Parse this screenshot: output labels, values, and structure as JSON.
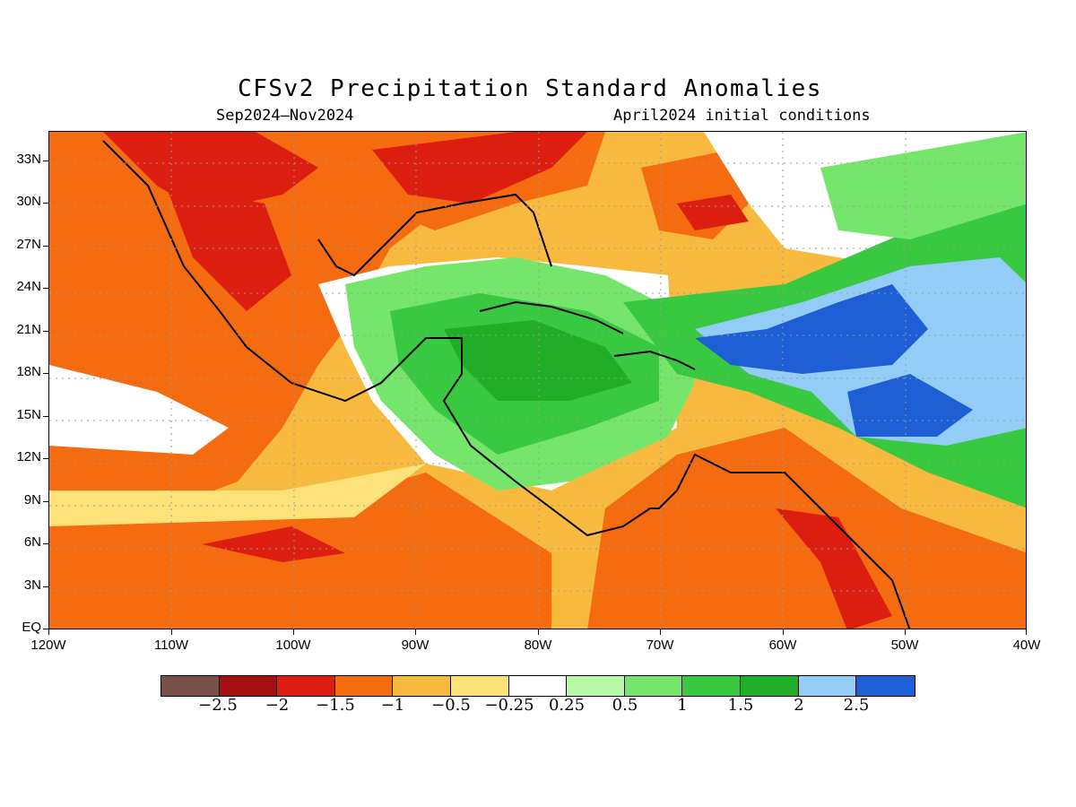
{
  "title": "CFSv2 Precipitation Standard Anomalies",
  "subtitle_left": "Sep2024–Nov2024",
  "subtitle_right": "April2024 initial conditions",
  "map": {
    "projection": "lat-lon",
    "lon_range": [
      -120,
      -40
    ],
    "lat_range": [
      0,
      35
    ],
    "y_ticks": [
      "33N",
      "30N",
      "27N",
      "24N",
      "21N",
      "18N",
      "15N",
      "12N",
      "9N",
      "6N",
      "3N",
      "EQ"
    ],
    "x_ticks": [
      "120W",
      "110W",
      "100W",
      "90W",
      "80W",
      "70W",
      "60W",
      "50W",
      "40W"
    ],
    "gridlines": true,
    "region": "Central America, Caribbean and Gulf of Mexico"
  },
  "colorbar": {
    "colors": [
      "#7a5148",
      "#a50f0f",
      "#dc1e10",
      "#f46b10",
      "#f8ba3e",
      "#fde27a",
      "#ffffff",
      "#b6f7a8",
      "#76e56c",
      "#39c940",
      "#21ad27",
      "#92ccf7",
      "#1f5fd6"
    ],
    "labels": [
      "−2.5",
      "−2",
      "−1.5",
      "−1",
      "−0.5",
      "−0.25",
      "0.25",
      "0.5",
      "1",
      "1.5",
      "2",
      "2.5"
    ]
  },
  "chart_data": {
    "type": "heatmap",
    "title": "CFSv2 Precipitation Standard Anomalies",
    "period": "Sep2024–Nov2024",
    "initialization": "April2024 initial conditions",
    "xlabel": "",
    "ylabel": "",
    "xlim": [
      -120,
      -40
    ],
    "ylim": [
      0,
      35
    ],
    "levels": [
      -2.5,
      -2,
      -1.5,
      -1,
      -0.5,
      -0.25,
      0.25,
      0.5,
      1,
      1.5,
      2,
      2.5
    ]
  }
}
